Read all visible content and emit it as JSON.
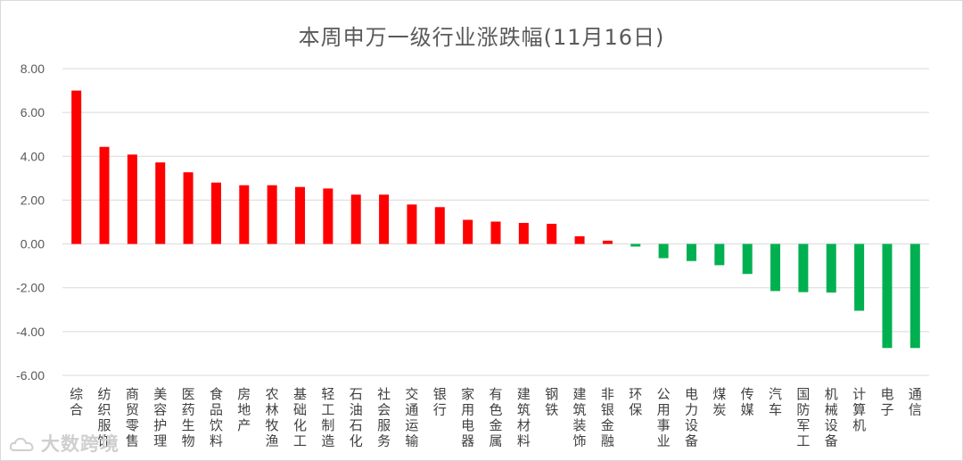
{
  "chart_data": {
    "type": "bar",
    "title": "本周申万一级行业涨跌幅(11月16日)",
    "xlabel": "",
    "ylabel": "",
    "ylim": [
      -6,
      8
    ],
    "yticks": [
      "8.00",
      "6.00",
      "4.00",
      "2.00",
      "0.00",
      "-2.00",
      "-4.00",
      "-6.00"
    ],
    "grid": true,
    "legend": "none",
    "positive_color": "#ff0000",
    "negative_color": "#00b050",
    "categories": [
      "综合",
      "纺织服饰",
      "商贸零售",
      "美容护理",
      "医药生物",
      "食品饮料",
      "房地产",
      "农林牧渔",
      "基础化工",
      "轻工制造",
      "石油石化",
      "社会服务",
      "交通运输",
      "银行",
      "家用电器",
      "有色金属",
      "建筑材料",
      "钢铁",
      "建筑装饰",
      "非银金融",
      "环保",
      "公用事业",
      "电力设备",
      "煤炭",
      "传媒",
      "汽车",
      "国防军工",
      "机械设备",
      "计算机",
      "电子",
      "通信"
    ],
    "values": [
      7.0,
      4.43,
      4.08,
      3.72,
      3.27,
      2.8,
      2.68,
      2.68,
      2.6,
      2.53,
      2.25,
      2.25,
      1.8,
      1.68,
      1.1,
      1.02,
      0.96,
      0.92,
      0.35,
      0.15,
      -0.12,
      -0.65,
      -0.78,
      -0.97,
      -1.37,
      -2.15,
      -2.2,
      -2.22,
      -3.05,
      -4.75,
      -4.75
    ]
  },
  "watermark": {
    "text": "大数跨境",
    "logo_icon": "cloud-logo-icon"
  }
}
